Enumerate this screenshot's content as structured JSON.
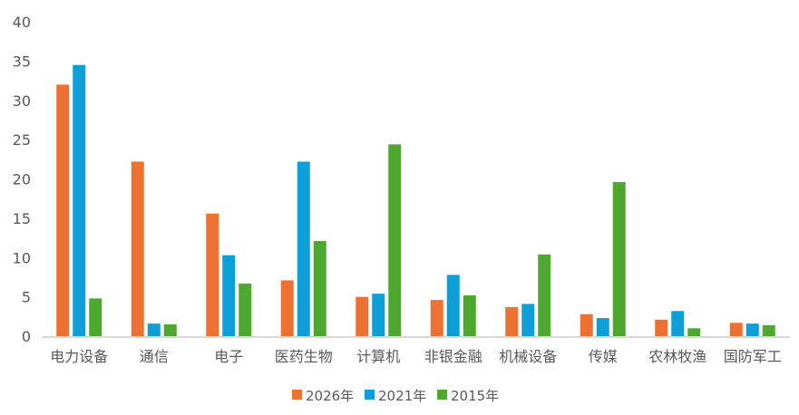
{
  "chart_data": {
    "type": "bar",
    "title": "",
    "xlabel": "",
    "ylabel": "",
    "ylim": [
      0,
      40
    ],
    "yticks": [
      0,
      5,
      10,
      15,
      20,
      25,
      30,
      35,
      40
    ],
    "grid": false,
    "legend_position": "bottom",
    "categories": [
      "电力设备",
      "通信",
      "电子",
      "医药生物",
      "计算机",
      "非银金融",
      "机械设备",
      "传媒",
      "农林牧渔",
      "国防军工"
    ],
    "series": [
      {
        "name": "2026年",
        "color": "#ED7133",
        "values": [
          32.0,
          22.2,
          15.6,
          7.1,
          5.0,
          4.6,
          3.7,
          2.8,
          2.1,
          1.7
        ]
      },
      {
        "name": "2021年",
        "color": "#0E9FD8",
        "values": [
          34.5,
          1.6,
          10.3,
          22.2,
          5.4,
          7.8,
          4.1,
          2.3,
          3.2,
          1.6
        ]
      },
      {
        "name": "2015年",
        "color": "#4EA72E",
        "values": [
          4.8,
          1.5,
          6.7,
          12.1,
          24.4,
          5.2,
          10.4,
          19.6,
          1.0,
          1.4
        ]
      }
    ]
  }
}
